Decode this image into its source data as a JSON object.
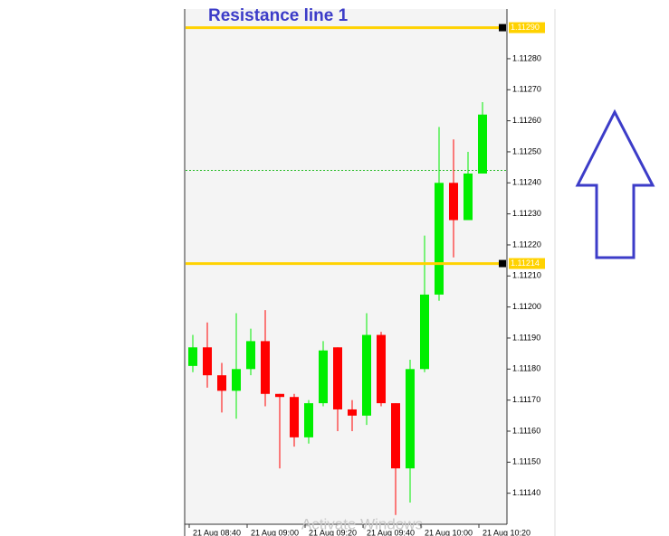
{
  "chart_data": {
    "type": "candlestick",
    "title": "Resistance line 1",
    "categories": [
      "21 Aug 08:40",
      null,
      null,
      null,
      "21 Aug 09:00",
      null,
      null,
      null,
      "21 Aug 09:20",
      null,
      null,
      null,
      "21 Aug 09:40",
      null,
      null,
      null,
      "21 Aug 10:00",
      null,
      null,
      null,
      "21 Aug 10:20"
    ],
    "open": [
      1.11181,
      1.11187,
      1.11178,
      1.11173,
      1.1118,
      1.11189,
      1.11172,
      1.11171,
      1.11158,
      1.11169,
      1.11187,
      1.11167,
      1.11165,
      1.11191,
      1.11169,
      1.11148,
      1.1118,
      1.11204,
      1.1124,
      1.11228,
      1.11243
    ],
    "high": [
      1.11191,
      1.11195,
      1.11182,
      1.11198,
      1.11193,
      1.11199,
      1.11172,
      1.11172,
      1.1117,
      1.11189,
      1.11187,
      1.1117,
      1.11198,
      1.11192,
      1.11169,
      1.11183,
      1.11223,
      1.11258,
      1.11254,
      1.1125,
      1.11266
    ],
    "low": [
      1.11179,
      1.11174,
      1.11166,
      1.11164,
      1.11178,
      1.11168,
      1.11148,
      1.11155,
      1.11156,
      1.11168,
      1.1116,
      1.1116,
      1.11162,
      1.11168,
      1.11133,
      1.11137,
      1.11179,
      1.11202,
      1.11216,
      1.11228,
      1.11243
    ],
    "close": [
      1.11187,
      1.11178,
      1.11173,
      1.1118,
      1.11189,
      1.11172,
      1.11171,
      1.11158,
      1.11169,
      1.11186,
      1.11167,
      1.11165,
      1.11191,
      1.11169,
      1.11148,
      1.1118,
      1.11204,
      1.1124,
      1.11228,
      1.11243,
      1.11262
    ],
    "up_color": "#00ee00",
    "down_color": "#ff0000",
    "ylim": [
      1.1113,
      1.11296
    ],
    "yticks": [
      {
        "value": 1.1114,
        "label": "1.11140"
      },
      {
        "value": 1.1115,
        "label": "1.11150"
      },
      {
        "value": 1.1116,
        "label": "1.11160"
      },
      {
        "value": 1.1117,
        "label": "1.11170"
      },
      {
        "value": 1.1118,
        "label": "1.11180"
      },
      {
        "value": 1.1119,
        "label": "1.11190"
      },
      {
        "value": 1.112,
        "label": "1.11200"
      },
      {
        "value": 1.1121,
        "label": "1.11210"
      },
      {
        "value": 1.1122,
        "label": "1.11220"
      },
      {
        "value": 1.1123,
        "label": "1.11230"
      },
      {
        "value": 1.1124,
        "label": "1.11240"
      },
      {
        "value": 1.1125,
        "label": "1.11250"
      },
      {
        "value": 1.1126,
        "label": "1.11260"
      },
      {
        "value": 1.1127,
        "label": "1.11270"
      },
      {
        "value": 1.1128,
        "label": "1.11280"
      }
    ],
    "levels": [
      {
        "value": 1.1129,
        "label": "1.11290"
      },
      {
        "value": 1.11214,
        "label": "1.11214"
      }
    ],
    "level_color": "#ffd200",
    "price_line": 1.11244,
    "price_line_color": "#22bb22",
    "watermark": "Activate Windows"
  }
}
